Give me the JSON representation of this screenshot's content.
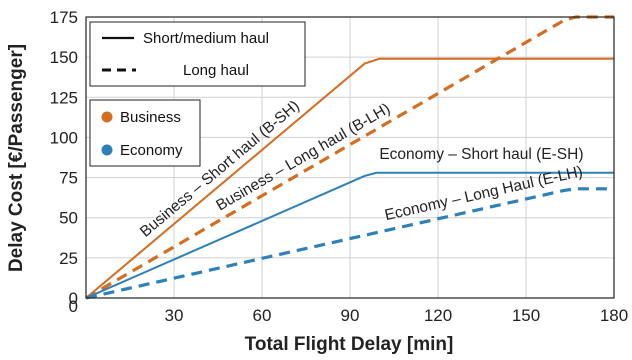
{
  "chart_data": {
    "type": "line",
    "xlabel": "Total Flight Delay [min]",
    "ylabel": "Delay Cost [€/Passenger]",
    "xlim": [
      0,
      180
    ],
    "ylim": [
      0,
      175
    ],
    "xticks": [
      0,
      30,
      60,
      90,
      120,
      150,
      180
    ],
    "yticks": [
      0,
      25,
      50,
      75,
      100,
      125,
      150,
      175
    ],
    "grid": true,
    "colors": {
      "business": "#d46d1f",
      "economy": "#2e80b8"
    },
    "legend_linestyle": {
      "placement": "top-left",
      "items": [
        {
          "label": "Short/medium haul",
          "style": "solid"
        },
        {
          "label": "Long haul",
          "style": "dashed"
        }
      ]
    },
    "legend_class": {
      "placement": "upper-left",
      "items": [
        {
          "label": "Business",
          "color": "#d46d1f"
        },
        {
          "label": "Economy",
          "color": "#2e80b8"
        }
      ]
    },
    "series": [
      {
        "name": "Business – Short haul (B-SH)",
        "class": "business",
        "style": "solid",
        "x": [
          0,
          95,
          100,
          180
        ],
        "y": [
          0,
          146,
          149,
          149
        ]
      },
      {
        "name": "Business – Long haul (B-LH)",
        "class": "business",
        "style": "dashed",
        "x": [
          0,
          163,
          167,
          180
        ],
        "y": [
          0,
          173,
          175,
          175
        ]
      },
      {
        "name": "Economy – Short haul (E-SH)",
        "class": "economy",
        "style": "solid",
        "x": [
          0,
          95,
          99,
          180
        ],
        "y": [
          0,
          76,
          78,
          78
        ]
      },
      {
        "name": "Economy – Long Haul (E-LH)",
        "class": "economy",
        "style": "dashed",
        "x": [
          0,
          163,
          167,
          180
        ],
        "y": [
          0,
          67,
          68,
          68
        ]
      }
    ],
    "annotations": [
      {
        "text": "Business – Short haul (B-SH)",
        "series": 0,
        "x": 22,
        "y": 0,
        "dx": 0,
        "dy": 0
      },
      {
        "text": "Business – Long haul (B-LH)",
        "series": 1,
        "x": 47,
        "y": 0
      },
      {
        "text": "Economy – Short haul (E-SH)",
        "series": 2,
        "x": 100,
        "y": 80,
        "flat": true
      },
      {
        "text": "Economy – Long Haul (E-LH)",
        "series": 3,
        "x": 103,
        "y": 0
      }
    ]
  }
}
